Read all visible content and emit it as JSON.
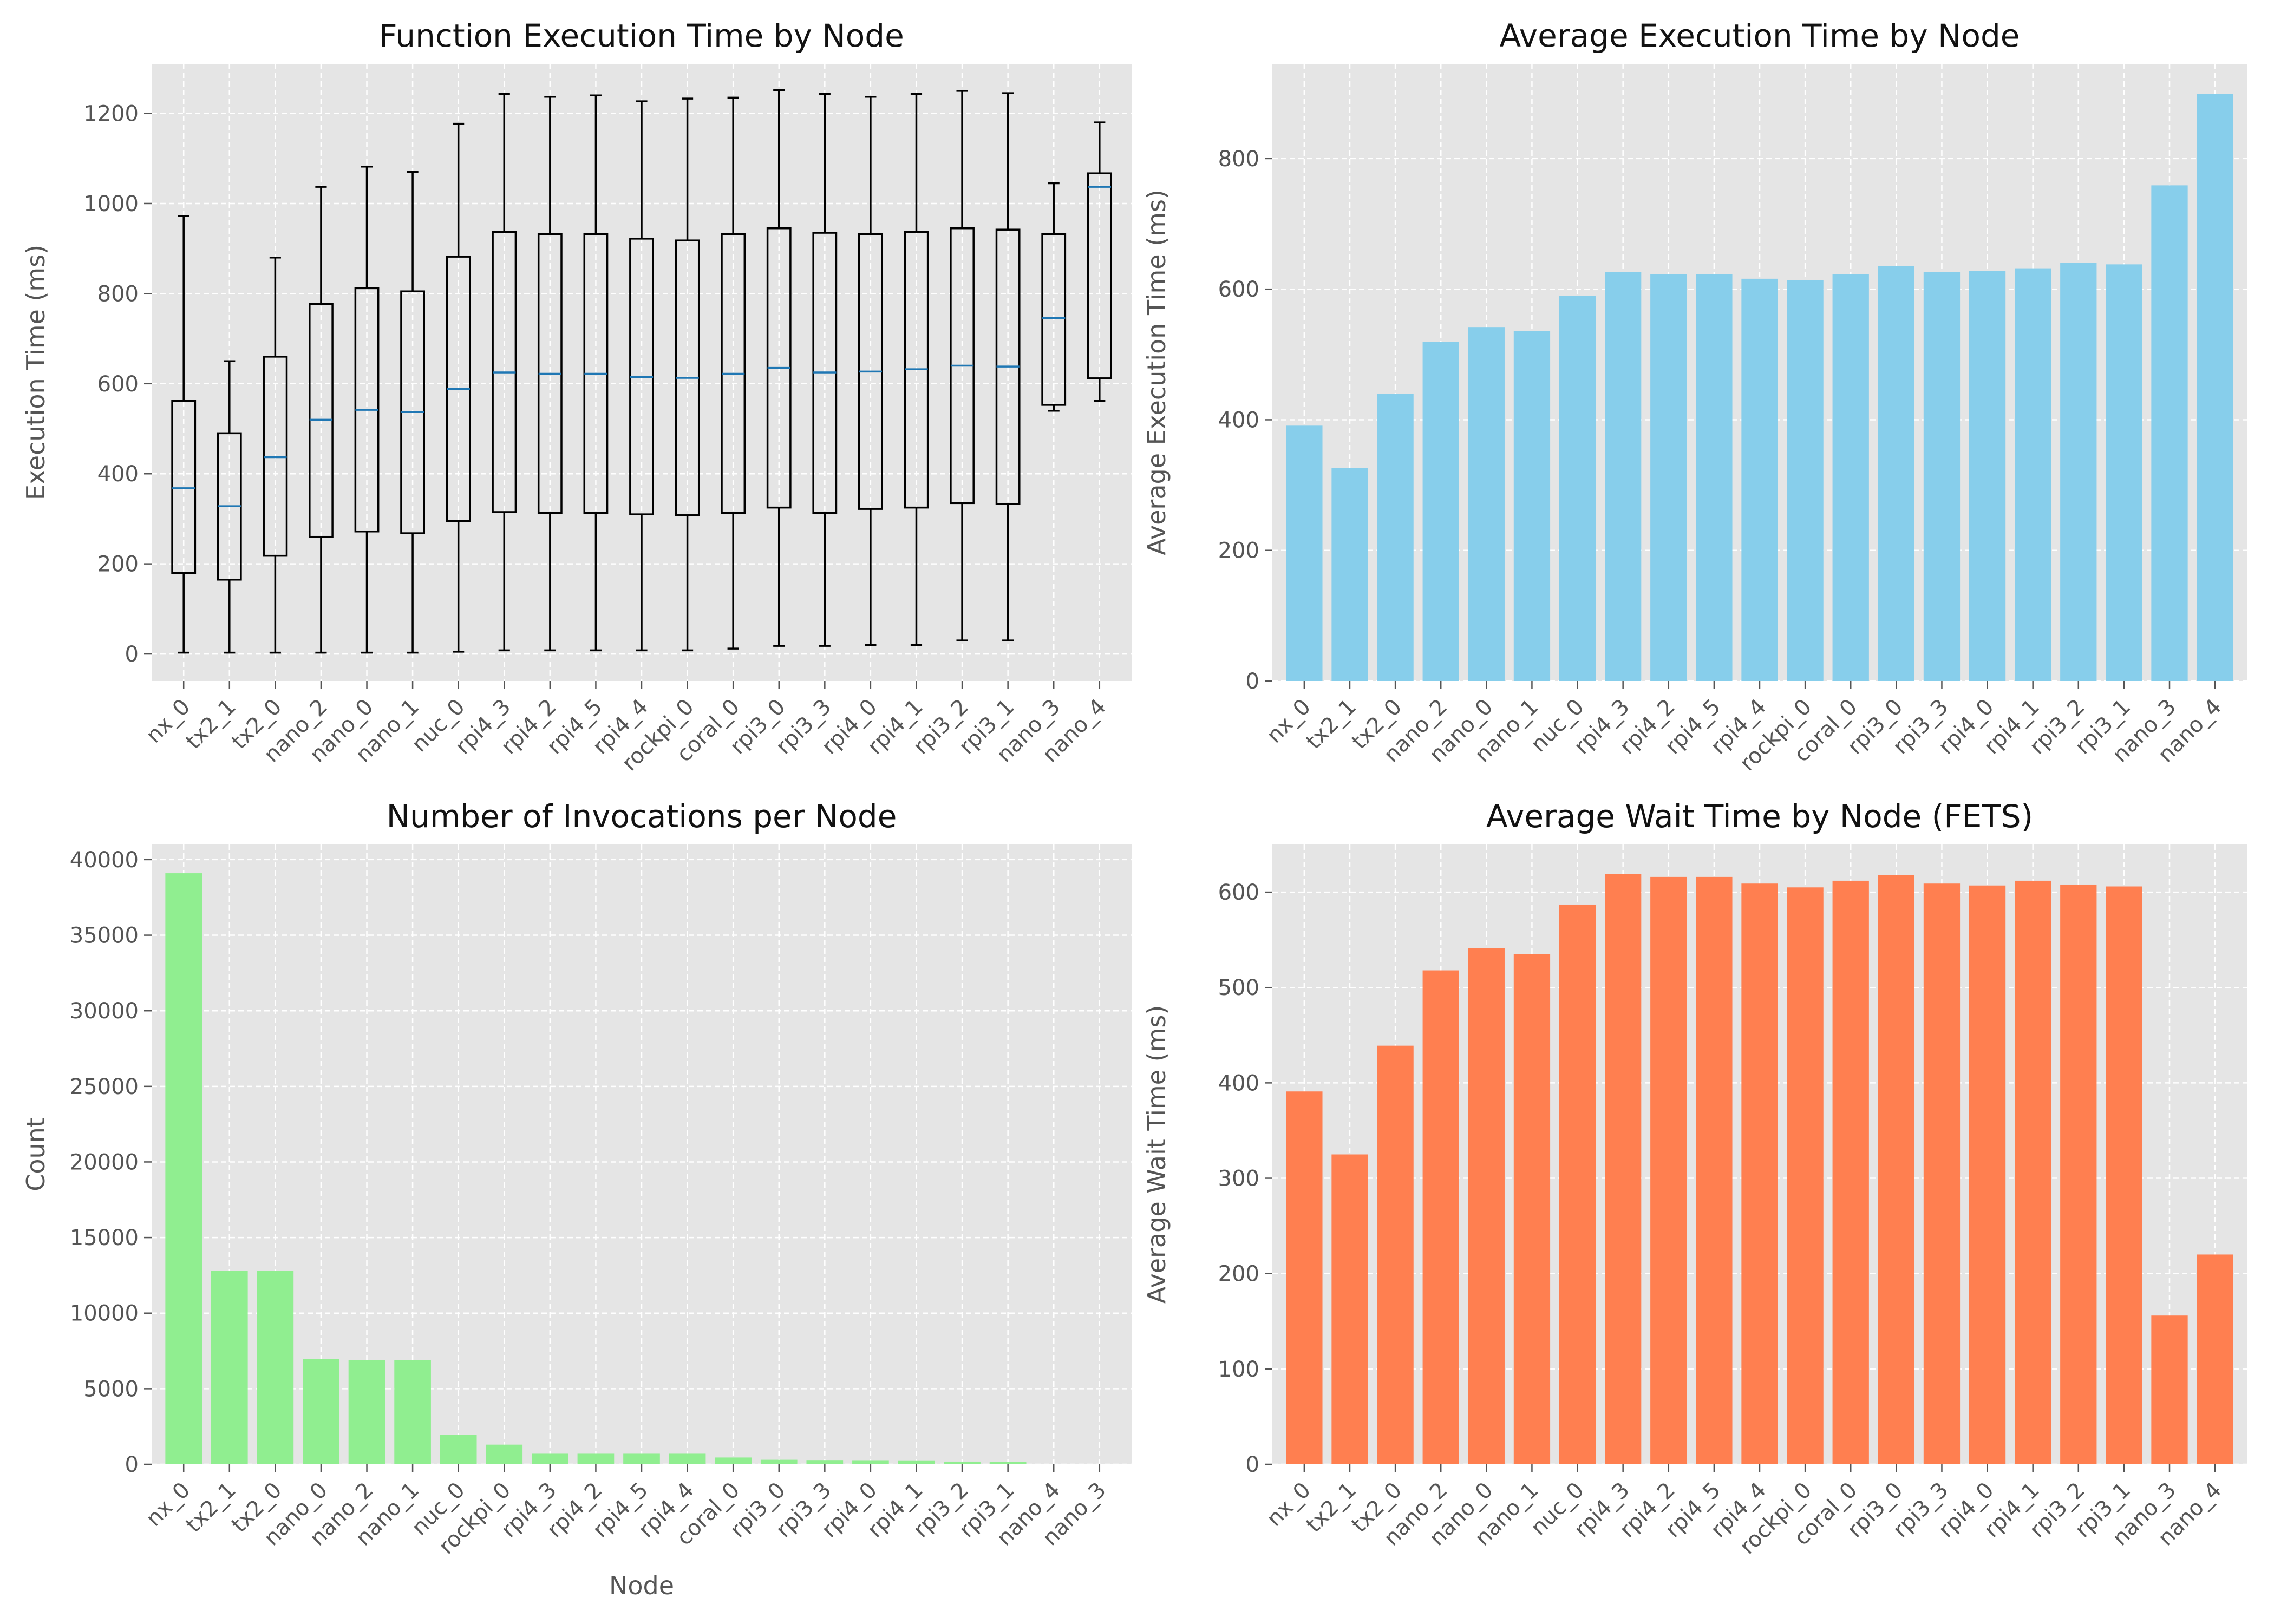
{
  "colors": {
    "plot_bg": "#e5e5e5",
    "grid": "#ffffff",
    "text": "#555555",
    "title": "#111111",
    "box_edge": "#000000",
    "median": "#1f77b4",
    "avg_exec_bar": "#87ceeb",
    "invocation_bar": "#90ee90",
    "wait_bar": "#ff7f50"
  },
  "chart_data": [
    {
      "id": "exec-box",
      "type": "box",
      "title": "Function Execution Time by Node",
      "xlabel": "",
      "ylabel": "Execution Time (ms)",
      "ylim": [
        -60,
        1310
      ],
      "yticks": [
        0,
        200,
        400,
        600,
        800,
        1000,
        1200
      ],
      "grid": true,
      "categories": [
        "nx_0",
        "tx2_1",
        "tx2_0",
        "nano_2",
        "nano_0",
        "nano_1",
        "nuc_0",
        "rpi4_3",
        "rpi4_2",
        "rpi4_5",
        "rpi4_4",
        "rockpi_0",
        "coral_0",
        "rpi3_0",
        "rpi3_3",
        "rpi4_0",
        "rpi4_1",
        "rpi3_2",
        "rpi3_1",
        "nano_3",
        "nano_4"
      ],
      "boxes": [
        {
          "whislo": 3,
          "q1": 180,
          "med": 368,
          "q3": 562,
          "whishi": 972
        },
        {
          "whislo": 3,
          "q1": 165,
          "med": 328,
          "q3": 490,
          "whishi": 650
        },
        {
          "whislo": 3,
          "q1": 218,
          "med": 437,
          "q3": 660,
          "whishi": 880
        },
        {
          "whislo": 3,
          "q1": 260,
          "med": 520,
          "q3": 777,
          "whishi": 1037
        },
        {
          "whislo": 3,
          "q1": 272,
          "med": 542,
          "q3": 812,
          "whishi": 1082
        },
        {
          "whislo": 3,
          "q1": 268,
          "med": 537,
          "q3": 805,
          "whishi": 1070
        },
        {
          "whislo": 5,
          "q1": 295,
          "med": 588,
          "q3": 882,
          "whishi": 1177
        },
        {
          "whislo": 8,
          "q1": 315,
          "med": 625,
          "q3": 937,
          "whishi": 1243
        },
        {
          "whislo": 8,
          "q1": 313,
          "med": 622,
          "q3": 932,
          "whishi": 1237
        },
        {
          "whislo": 8,
          "q1": 313,
          "med": 622,
          "q3": 932,
          "whishi": 1240
        },
        {
          "whislo": 8,
          "q1": 310,
          "med": 615,
          "q3": 922,
          "whishi": 1227
        },
        {
          "whislo": 8,
          "q1": 308,
          "med": 613,
          "q3": 918,
          "whishi": 1233
        },
        {
          "whislo": 12,
          "q1": 313,
          "med": 622,
          "q3": 932,
          "whishi": 1235
        },
        {
          "whislo": 18,
          "q1": 325,
          "med": 635,
          "q3": 945,
          "whishi": 1252
        },
        {
          "whislo": 18,
          "q1": 313,
          "med": 625,
          "q3": 935,
          "whishi": 1243
        },
        {
          "whislo": 20,
          "q1": 322,
          "med": 627,
          "q3": 932,
          "whishi": 1237
        },
        {
          "whislo": 20,
          "q1": 325,
          "med": 632,
          "q3": 937,
          "whishi": 1243
        },
        {
          "whislo": 30,
          "q1": 335,
          "med": 640,
          "q3": 945,
          "whishi": 1250
        },
        {
          "whislo": 30,
          "q1": 333,
          "med": 638,
          "q3": 942,
          "whishi": 1245
        },
        {
          "whislo": 540,
          "q1": 553,
          "med": 746,
          "q3": 932,
          "whishi": 1045
        },
        {
          "whislo": 562,
          "q1": 612,
          "med": 1037,
          "q3": 1067,
          "whishi": 1180
        }
      ]
    },
    {
      "id": "avg-exec",
      "type": "bar",
      "title": "Average Execution Time by Node",
      "xlabel": "",
      "ylabel": "Average Execution Time (ms)",
      "ylim": [
        0,
        945
      ],
      "yticks": [
        0,
        200,
        400,
        600,
        800
      ],
      "grid": true,
      "color": "#87ceeb",
      "categories": [
        "nx_0",
        "tx2_1",
        "tx2_0",
        "nano_2",
        "nano_0",
        "nano_1",
        "nuc_0",
        "rpi4_3",
        "rpi4_2",
        "rpi4_5",
        "rpi4_4",
        "rockpi_0",
        "coral_0",
        "rpi3_0",
        "rpi3_3",
        "rpi4_0",
        "rpi4_1",
        "rpi3_2",
        "rpi3_1",
        "nano_3",
        "nano_4"
      ],
      "values": [
        391,
        326,
        440,
        519,
        542,
        536,
        590,
        626,
        623,
        623,
        616,
        614,
        623,
        635,
        626,
        628,
        632,
        640,
        638,
        759,
        899
      ]
    },
    {
      "id": "invocations",
      "type": "bar",
      "title": "Number of Invocations per Node",
      "xlabel": "Node",
      "ylabel": "Count",
      "ylim": [
        0,
        41000
      ],
      "yticks": [
        0,
        5000,
        10000,
        15000,
        20000,
        25000,
        30000,
        35000,
        40000
      ],
      "grid": true,
      "color": "#90ee90",
      "categories": [
        "nx_0",
        "tx2_1",
        "tx2_0",
        "nano_0",
        "nano_2",
        "nano_1",
        "nuc_0",
        "rockpi_0",
        "rpi4_3",
        "rpi4_2",
        "rpi4_5",
        "rpi4_4",
        "coral_0",
        "rpi3_0",
        "rpi3_3",
        "rpi4_0",
        "rpi4_1",
        "rpi3_2",
        "rpi3_1",
        "nano_4",
        "nano_3"
      ],
      "values": [
        39100,
        12800,
        12800,
        6950,
        6900,
        6900,
        1950,
        1300,
        700,
        700,
        700,
        700,
        450,
        300,
        280,
        270,
        260,
        180,
        170,
        30,
        20
      ]
    },
    {
      "id": "wait-time",
      "type": "bar",
      "title": "Average Wait Time by Node (FETS)",
      "xlabel": "",
      "ylabel": "Average Wait Time (ms)",
      "ylim": [
        0,
        650
      ],
      "yticks": [
        0,
        100,
        200,
        300,
        400,
        500,
        600
      ],
      "grid": true,
      "color": "#ff7f50",
      "categories": [
        "nx_0",
        "tx2_1",
        "tx2_0",
        "nano_2",
        "nano_0",
        "nano_1",
        "nuc_0",
        "rpi4_3",
        "rpi4_2",
        "rpi4_5",
        "rpi4_4",
        "rockpi_0",
        "coral_0",
        "rpi3_0",
        "rpi3_3",
        "rpi4_0",
        "rpi4_1",
        "rpi3_2",
        "rpi3_1",
        "nano_3",
        "nano_4"
      ],
      "values": [
        391,
        325,
        439,
        518,
        541,
        535,
        587,
        619,
        616,
        616,
        609,
        605,
        612,
        618,
        609,
        607,
        612,
        608,
        606,
        156,
        220
      ]
    }
  ]
}
